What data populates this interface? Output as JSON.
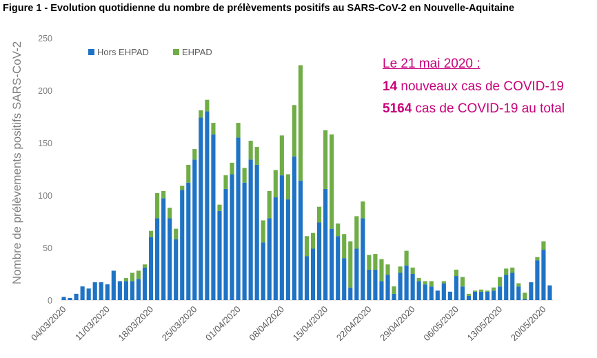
{
  "title": "Figure 1 - Evolution quotidienne du nombre de prélèvements positifs au SARS-CoV-2 en Nouvelle-Aquitaine",
  "annotation": {
    "header": "Le 21 mai 2020 :",
    "line1_value": "14",
    "line1_text": " nouveaux cas de COVID-19",
    "line2_value": "5164",
    "line2_text": " cas de COVID-19 au total",
    "color": "#c8007a"
  },
  "chart_data": {
    "type": "bar",
    "stacked": true,
    "ylabel": "Nombre de prélèvements positifs SARS-CoV-2",
    "ylim": [
      0,
      250
    ],
    "yticks": [
      0,
      50,
      100,
      150,
      200,
      250
    ],
    "grid": false,
    "legend_position": "top-left",
    "categories": [
      "04/03/2020",
      "05/03/2020",
      "06/03/2020",
      "07/03/2020",
      "08/03/2020",
      "09/03/2020",
      "10/03/2020",
      "11/03/2020",
      "12/03/2020",
      "13/03/2020",
      "14/03/2020",
      "15/03/2020",
      "16/03/2020",
      "17/03/2020",
      "18/03/2020",
      "19/03/2020",
      "20/03/2020",
      "21/03/2020",
      "22/03/2020",
      "23/03/2020",
      "24/03/2020",
      "25/03/2020",
      "26/03/2020",
      "27/03/2020",
      "28/03/2020",
      "29/03/2020",
      "30/03/2020",
      "31/03/2020",
      "01/04/2020",
      "02/04/2020",
      "03/04/2020",
      "04/04/2020",
      "05/04/2020",
      "06/04/2020",
      "07/04/2020",
      "08/04/2020",
      "09/04/2020",
      "10/04/2020",
      "11/04/2020",
      "12/04/2020",
      "13/04/2020",
      "14/04/2020",
      "15/04/2020",
      "16/04/2020",
      "17/04/2020",
      "18/04/2020",
      "19/04/2020",
      "20/04/2020",
      "21/04/2020",
      "22/04/2020",
      "23/04/2020",
      "24/04/2020",
      "25/04/2020",
      "26/04/2020",
      "27/04/2020",
      "28/04/2020",
      "29/04/2020",
      "30/04/2020",
      "01/05/2020",
      "02/05/2020",
      "03/05/2020",
      "04/05/2020",
      "05/05/2020",
      "06/05/2020",
      "07/05/2020",
      "08/05/2020",
      "09/05/2020",
      "10/05/2020",
      "11/05/2020",
      "12/05/2020",
      "13/05/2020",
      "14/05/2020",
      "15/05/2020",
      "16/05/2020",
      "17/05/2020",
      "18/05/2020",
      "19/05/2020",
      "20/05/2020",
      "21/05/2020"
    ],
    "tick_labels": [
      "04/03/2020",
      "11/03/2020",
      "18/03/2020",
      "25/03/2020",
      "01/04/2020",
      "08/04/2020",
      "15/04/2020",
      "22/04/2020",
      "29/04/2020",
      "06/05/2020",
      "13/05/2020",
      "20/05/2020"
    ],
    "series": [
      {
        "name": "Hors EHPAD",
        "color": "#1f73c4",
        "values": [
          3,
          2,
          6,
          13,
          11,
          17,
          17,
          15,
          28,
          18,
          18,
          18,
          20,
          31,
          60,
          78,
          97,
          78,
          58,
          105,
          112,
          134,
          174,
          180,
          158,
          85,
          106,
          120,
          155,
          112,
          134,
          129,
          55,
          78,
          98,
          119,
          96,
          137,
          114,
          42,
          49,
          74,
          106,
          68,
          61,
          40,
          12,
          49,
          78,
          29,
          29,
          18,
          24,
          6,
          26,
          33,
          25,
          18,
          15,
          13,
          9,
          16,
          8,
          23,
          13,
          4,
          8,
          8,
          8,
          9,
          13,
          24,
          26,
          13,
          1,
          17,
          38,
          48,
          14
        ]
      },
      {
        "name": "EHPAD",
        "color": "#70ad47",
        "values": [
          0,
          0,
          0,
          0,
          0,
          0,
          0,
          0,
          0,
          0,
          3,
          8,
          8,
          3,
          6,
          24,
          7,
          10,
          10,
          4,
          17,
          10,
          7,
          11,
          11,
          6,
          13,
          11,
          14,
          14,
          18,
          17,
          21,
          26,
          26,
          38,
          24,
          49,
          110,
          19,
          15,
          15,
          56,
          90,
          12,
          23,
          44,
          31,
          16,
          14,
          15,
          21,
          10,
          7,
          6,
          14,
          6,
          3,
          3,
          5,
          0,
          2,
          0,
          6,
          9,
          2,
          1,
          2,
          1,
          3,
          9,
          6,
          5,
          3,
          6,
          0,
          3,
          8,
          0
        ]
      }
    ]
  }
}
